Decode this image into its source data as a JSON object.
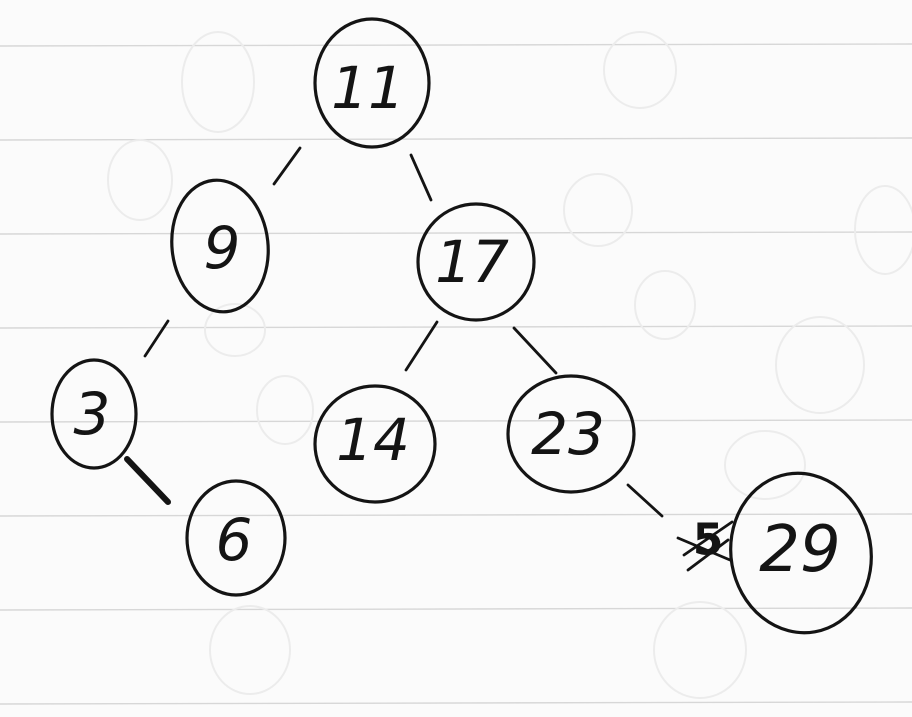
{
  "tree": {
    "nodes": [
      {
        "id": "n11",
        "label": "11"
      },
      {
        "id": "n9",
        "label": "9"
      },
      {
        "id": "n17",
        "label": "17"
      },
      {
        "id": "n3",
        "label": "3"
      },
      {
        "id": "n14",
        "label": "14"
      },
      {
        "id": "n23",
        "label": "23"
      },
      {
        "id": "n6",
        "label": "6"
      },
      {
        "id": "n29",
        "label": "29"
      }
    ],
    "edges": [
      {
        "from": "n11",
        "to": "n9"
      },
      {
        "from": "n11",
        "to": "n17"
      },
      {
        "from": "n9",
        "to": "n3"
      },
      {
        "from": "n17",
        "to": "n14"
      },
      {
        "from": "n17",
        "to": "n23"
      },
      {
        "from": "n3",
        "to": "n6"
      },
      {
        "from": "n23",
        "to": "n29"
      }
    ],
    "crossed_out_mark": "5"
  }
}
